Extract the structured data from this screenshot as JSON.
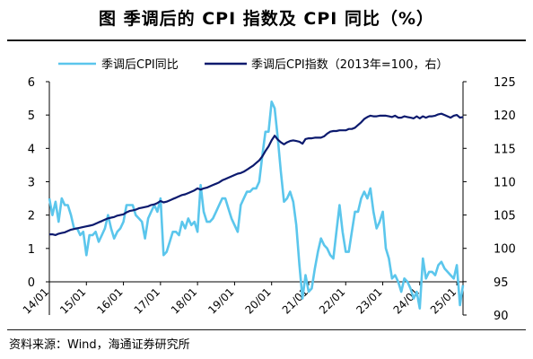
{
  "title": "图  季调后的 CPI 指数及 CPI 同比（%）",
  "source": "资料来源：Wind，海通证券研究所",
  "chart_data": {
    "type": "line",
    "title": "图  季调后的 CPI 指数及 CPI 同比（%）",
    "x": [
      "2014-01",
      "2014-02",
      "2014-03",
      "2014-04",
      "2014-05",
      "2014-06",
      "2014-07",
      "2014-08",
      "2014-09",
      "2014-10",
      "2014-11",
      "2014-12",
      "2015-01",
      "2015-02",
      "2015-03",
      "2015-04",
      "2015-05",
      "2015-06",
      "2015-07",
      "2015-08",
      "2015-09",
      "2015-10",
      "2015-11",
      "2015-12",
      "2016-01",
      "2016-02",
      "2016-03",
      "2016-04",
      "2016-05",
      "2016-06",
      "2016-07",
      "2016-08",
      "2016-09",
      "2016-10",
      "2016-11",
      "2016-12",
      "2017-01",
      "2017-02",
      "2017-03",
      "2017-04",
      "2017-05",
      "2017-06",
      "2017-07",
      "2017-08",
      "2017-09",
      "2017-10",
      "2017-11",
      "2017-12",
      "2018-01",
      "2018-02",
      "2018-03",
      "2018-04",
      "2018-05",
      "2018-06",
      "2018-07",
      "2018-08",
      "2018-09",
      "2018-10",
      "2018-11",
      "2018-12",
      "2019-01",
      "2019-02",
      "2019-03",
      "2019-04",
      "2019-05",
      "2019-06",
      "2019-07",
      "2019-08",
      "2019-09",
      "2019-10",
      "2019-11",
      "2019-12",
      "2020-01",
      "2020-02",
      "2020-03",
      "2020-04",
      "2020-05",
      "2020-06",
      "2020-07",
      "2020-08",
      "2020-09",
      "2020-10",
      "2020-11",
      "2020-12",
      "2021-01",
      "2021-02",
      "2021-03",
      "2021-04",
      "2021-05",
      "2021-06",
      "2021-07",
      "2021-08",
      "2021-09",
      "2021-10",
      "2021-11",
      "2021-12",
      "2022-01",
      "2022-02",
      "2022-03",
      "2022-04",
      "2022-05",
      "2022-06",
      "2022-07",
      "2022-08",
      "2022-09",
      "2022-10",
      "2022-11",
      "2022-12",
      "2023-01",
      "2023-02",
      "2023-03",
      "2023-04",
      "2023-05",
      "2023-06",
      "2023-07",
      "2023-08",
      "2023-09",
      "2023-10",
      "2023-11",
      "2023-12",
      "2024-01",
      "2024-02",
      "2024-03",
      "2024-04",
      "2024-05",
      "2024-06",
      "2024-07",
      "2024-08",
      "2024-09",
      "2024-10",
      "2024-11",
      "2024-12",
      "2025-01",
      "2025-02",
      "2025-03"
    ],
    "x_tick_labels": [
      "14/01",
      "15/01",
      "16/01",
      "17/01",
      "18/01",
      "19/01",
      "20/01",
      "21/01",
      "22/01",
      "23/01",
      "24/01",
      "25/01"
    ],
    "y_left": {
      "range": [
        0,
        6
      ],
      "ticks": [
        "0",
        "1",
        "2",
        "3",
        "4",
        "5",
        "6"
      ]
    },
    "y_right": {
      "range": [
        90,
        125
      ],
      "ticks": [
        "90",
        "95",
        "100",
        "105",
        "110",
        "115",
        "120",
        "125"
      ]
    },
    "legend_position": "top",
    "grid": false,
    "series": [
      {
        "name": "季调后CPI同比",
        "axis": "left",
        "color": "#5bc6ec",
        "values": [
          2.5,
          2.0,
          2.4,
          1.8,
          2.5,
          2.3,
          2.3,
          2.0,
          1.6,
          1.6,
          1.4,
          1.5,
          0.8,
          1.4,
          1.4,
          1.5,
          1.2,
          1.4,
          1.6,
          2.0,
          1.6,
          1.3,
          1.5,
          1.6,
          1.8,
          2.3,
          2.3,
          2.3,
          2.0,
          1.9,
          1.8,
          1.3,
          1.9,
          2.1,
          2.3,
          2.1,
          2.5,
          0.8,
          0.9,
          1.2,
          1.5,
          1.5,
          1.4,
          1.8,
          1.6,
          1.9,
          1.7,
          1.8,
          1.5,
          2.9,
          2.1,
          1.8,
          1.8,
          1.9,
          2.1,
          2.3,
          2.5,
          2.5,
          2.2,
          1.9,
          1.7,
          1.5,
          2.3,
          2.5,
          2.7,
          2.7,
          2.8,
          2.8,
          3.0,
          3.8,
          4.5,
          4.5,
          5.4,
          5.2,
          4.3,
          3.3,
          2.4,
          2.5,
          2.7,
          2.4,
          1.7,
          0.5,
          -0.5,
          0.2,
          -0.3,
          -0.2,
          0.4,
          0.9,
          1.3,
          1.1,
          1.0,
          0.8,
          0.7,
          1.5,
          2.3,
          1.5,
          0.9,
          0.9,
          1.5,
          2.1,
          2.1,
          2.5,
          2.7,
          2.5,
          2.8,
          2.1,
          1.6,
          1.8,
          2.1,
          1.0,
          0.7,
          0.1,
          0.2,
          0.0,
          -0.3,
          0.1,
          0.0,
          -0.2,
          -0.5,
          -0.3,
          -0.8,
          0.7,
          0.1,
          0.3,
          0.3,
          0.2,
          0.5,
          0.6,
          0.4,
          0.3,
          0.2,
          0.1,
          0.5,
          -0.7,
          -0.1
        ]
      },
      {
        "name": "季调后CPI指数（2013年=100，右）",
        "axis": "right",
        "color": "#0c1a6e",
        "values": [
          102.1,
          102.1,
          102.0,
          102.2,
          102.3,
          102.4,
          102.6,
          102.8,
          102.9,
          103.0,
          103.1,
          103.2,
          103.3,
          103.4,
          103.5,
          103.7,
          103.9,
          104.1,
          104.3,
          104.5,
          104.6,
          104.7,
          104.9,
          105.0,
          105.1,
          105.4,
          105.6,
          105.7,
          105.8,
          106.0,
          106.1,
          106.2,
          106.3,
          106.5,
          106.6,
          106.8,
          107.1,
          106.9,
          107.0,
          107.2,
          107.4,
          107.6,
          107.8,
          108.0,
          108.1,
          108.3,
          108.5,
          108.7,
          109.0,
          108.8,
          109.0,
          109.1,
          109.3,
          109.5,
          109.7,
          109.9,
          110.2,
          110.4,
          110.6,
          110.8,
          111.0,
          111.2,
          111.3,
          111.5,
          111.8,
          112.1,
          112.4,
          112.8,
          113.2,
          113.8,
          114.6,
          115.3,
          116.2,
          116.9,
          116.3,
          115.9,
          115.6,
          115.9,
          116.1,
          116.2,
          116.1,
          116.0,
          115.7,
          116.4,
          116.5,
          116.5,
          116.6,
          116.6,
          116.6,
          116.8,
          117.2,
          117.5,
          117.6,
          117.6,
          117.7,
          117.7,
          117.7,
          117.9,
          117.9,
          118.1,
          118.5,
          118.9,
          119.4,
          119.7,
          119.9,
          119.8,
          119.8,
          119.9,
          119.9,
          119.9,
          119.8,
          119.7,
          119.9,
          119.6,
          119.6,
          119.8,
          119.7,
          119.6,
          119.5,
          119.8,
          119.5,
          119.8,
          119.6,
          119.8,
          119.8,
          119.9,
          120.1,
          120.2,
          120.0,
          119.8,
          119.6,
          119.9,
          120.0,
          119.6,
          119.7
        ]
      }
    ]
  }
}
